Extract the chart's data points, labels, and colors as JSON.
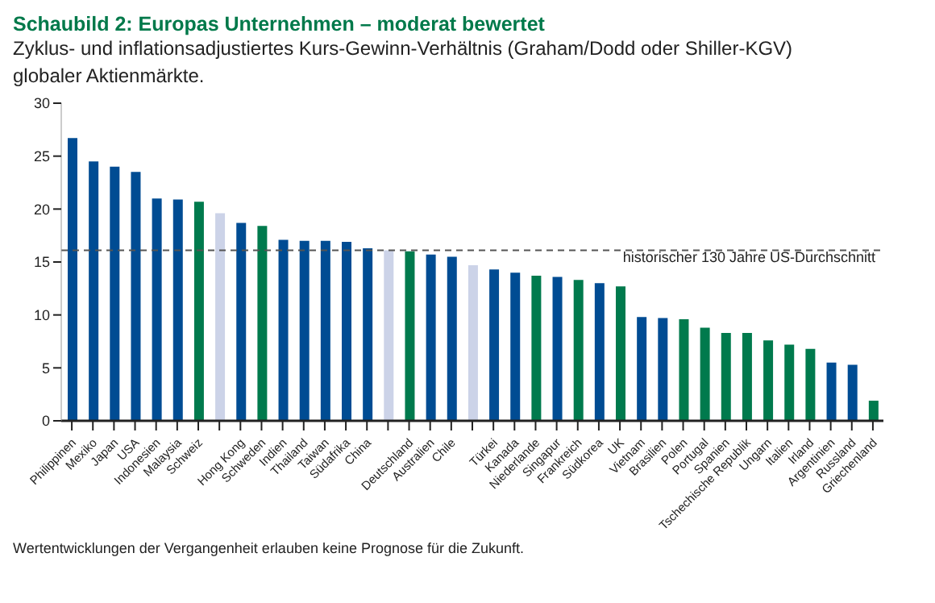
{
  "chart_data": {
    "type": "bar",
    "title": "Schaubild 2: Europas Unternehmen – moderat bewertet",
    "subtitle": "Zyklus- und inflationsadjustiertes Kurs-Gewinn-Verhältnis (Graham/Dodd oder Shiller-KGV) globaler Aktienmärkte.",
    "categories": [
      "Philippinen",
      "Mexiko",
      "Japan",
      "USA",
      "Indonesien",
      "Malaysia",
      "Schweiz",
      null,
      "Hong Kong",
      "Schweden",
      "Indien",
      "Thailand",
      "Taiwan",
      "Südafrika",
      "China",
      null,
      "Deutschland",
      "Australien",
      "Chile",
      null,
      "Türkei",
      "Kanada",
      "Niederlande",
      "Singapur",
      "Frankreich",
      "Südkorea",
      "UK",
      "Vietnam",
      "Brasilien",
      "Polen",
      "Portugal",
      "Spanien",
      "Tschechische Republik",
      "Ungarn",
      "Italien",
      "Irland",
      "Argentinien",
      "Russland",
      "Griechenland"
    ],
    "values": [
      26.7,
      24.5,
      24.0,
      23.5,
      21.0,
      20.9,
      20.7,
      19.6,
      18.7,
      18.4,
      17.1,
      17.0,
      17.0,
      16.9,
      16.3,
      16.1,
      16.0,
      15.7,
      15.5,
      14.7,
      14.3,
      14.0,
      13.7,
      13.6,
      13.3,
      13.0,
      12.7,
      9.8,
      9.7,
      9.6,
      8.8,
      8.3,
      8.3,
      7.6,
      7.2,
      6.8,
      5.5,
      5.3,
      1.9
    ],
    "colors": [
      "#004c93",
      "#004c93",
      "#004c93",
      "#004c93",
      "#004c93",
      "#004c93",
      "#007a4d",
      "#ccd3e8",
      "#004c93",
      "#007a4d",
      "#004c93",
      "#004c93",
      "#004c93",
      "#004c93",
      "#004c93",
      "#ccd3e8",
      "#007a4d",
      "#004c93",
      "#004c93",
      "#ccd3e8",
      "#004c93",
      "#004c93",
      "#007a4d",
      "#004c93",
      "#007a4d",
      "#004c93",
      "#007a4d",
      "#004c93",
      "#004c93",
      "#007a4d",
      "#007a4d",
      "#007a4d",
      "#007a4d",
      "#007a4d",
      "#007a4d",
      "#007a4d",
      "#004c93",
      "#004c93",
      "#007a4d"
    ],
    "ylim": [
      0,
      30
    ],
    "yticks": [
      0,
      5,
      10,
      15,
      20,
      25,
      30
    ],
    "grid": false,
    "legend": false,
    "ref_lines": [
      {
        "axis": "y",
        "value": 16.1,
        "label": "historischer 130 Jahre US-Durchschnitt",
        "color": "#555555",
        "line_style": "dashed"
      }
    ],
    "annotations": [
      "Wertentwicklungen der Vergangenheit erlauben keine Prognose für die Zukunft."
    ]
  }
}
